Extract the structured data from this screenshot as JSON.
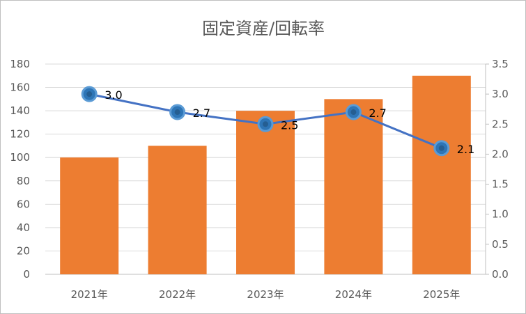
{
  "chart_data": {
    "type": "bar",
    "title": "固定資産/回転率",
    "categories": [
      "2021年",
      "2022年",
      "2023年",
      "2024年",
      "2025年"
    ],
    "series": [
      {
        "type": "bar",
        "axis": "left",
        "color": "#ED7D31",
        "values": [
          100,
          110,
          140,
          150,
          170
        ]
      },
      {
        "type": "line",
        "axis": "right",
        "color": "#4472C4",
        "values": [
          3.0,
          2.7,
          2.5,
          2.7,
          2.1
        ],
        "labels": [
          "3.0",
          "2.7",
          "2.5",
          "2.7",
          "2.1"
        ]
      }
    ],
    "y_left": {
      "min": 0,
      "max": 180,
      "step": 20,
      "ticks": [
        "0",
        "20",
        "40",
        "60",
        "80",
        "100",
        "120",
        "140",
        "160",
        "180"
      ]
    },
    "y_right": {
      "min": 0,
      "max": 3.5,
      "step": 0.5,
      "ticks": [
        "0.0",
        "0.5",
        "1.0",
        "1.5",
        "2.0",
        "2.5",
        "3.0",
        "3.5"
      ]
    },
    "grid": true,
    "legend": "none"
  }
}
